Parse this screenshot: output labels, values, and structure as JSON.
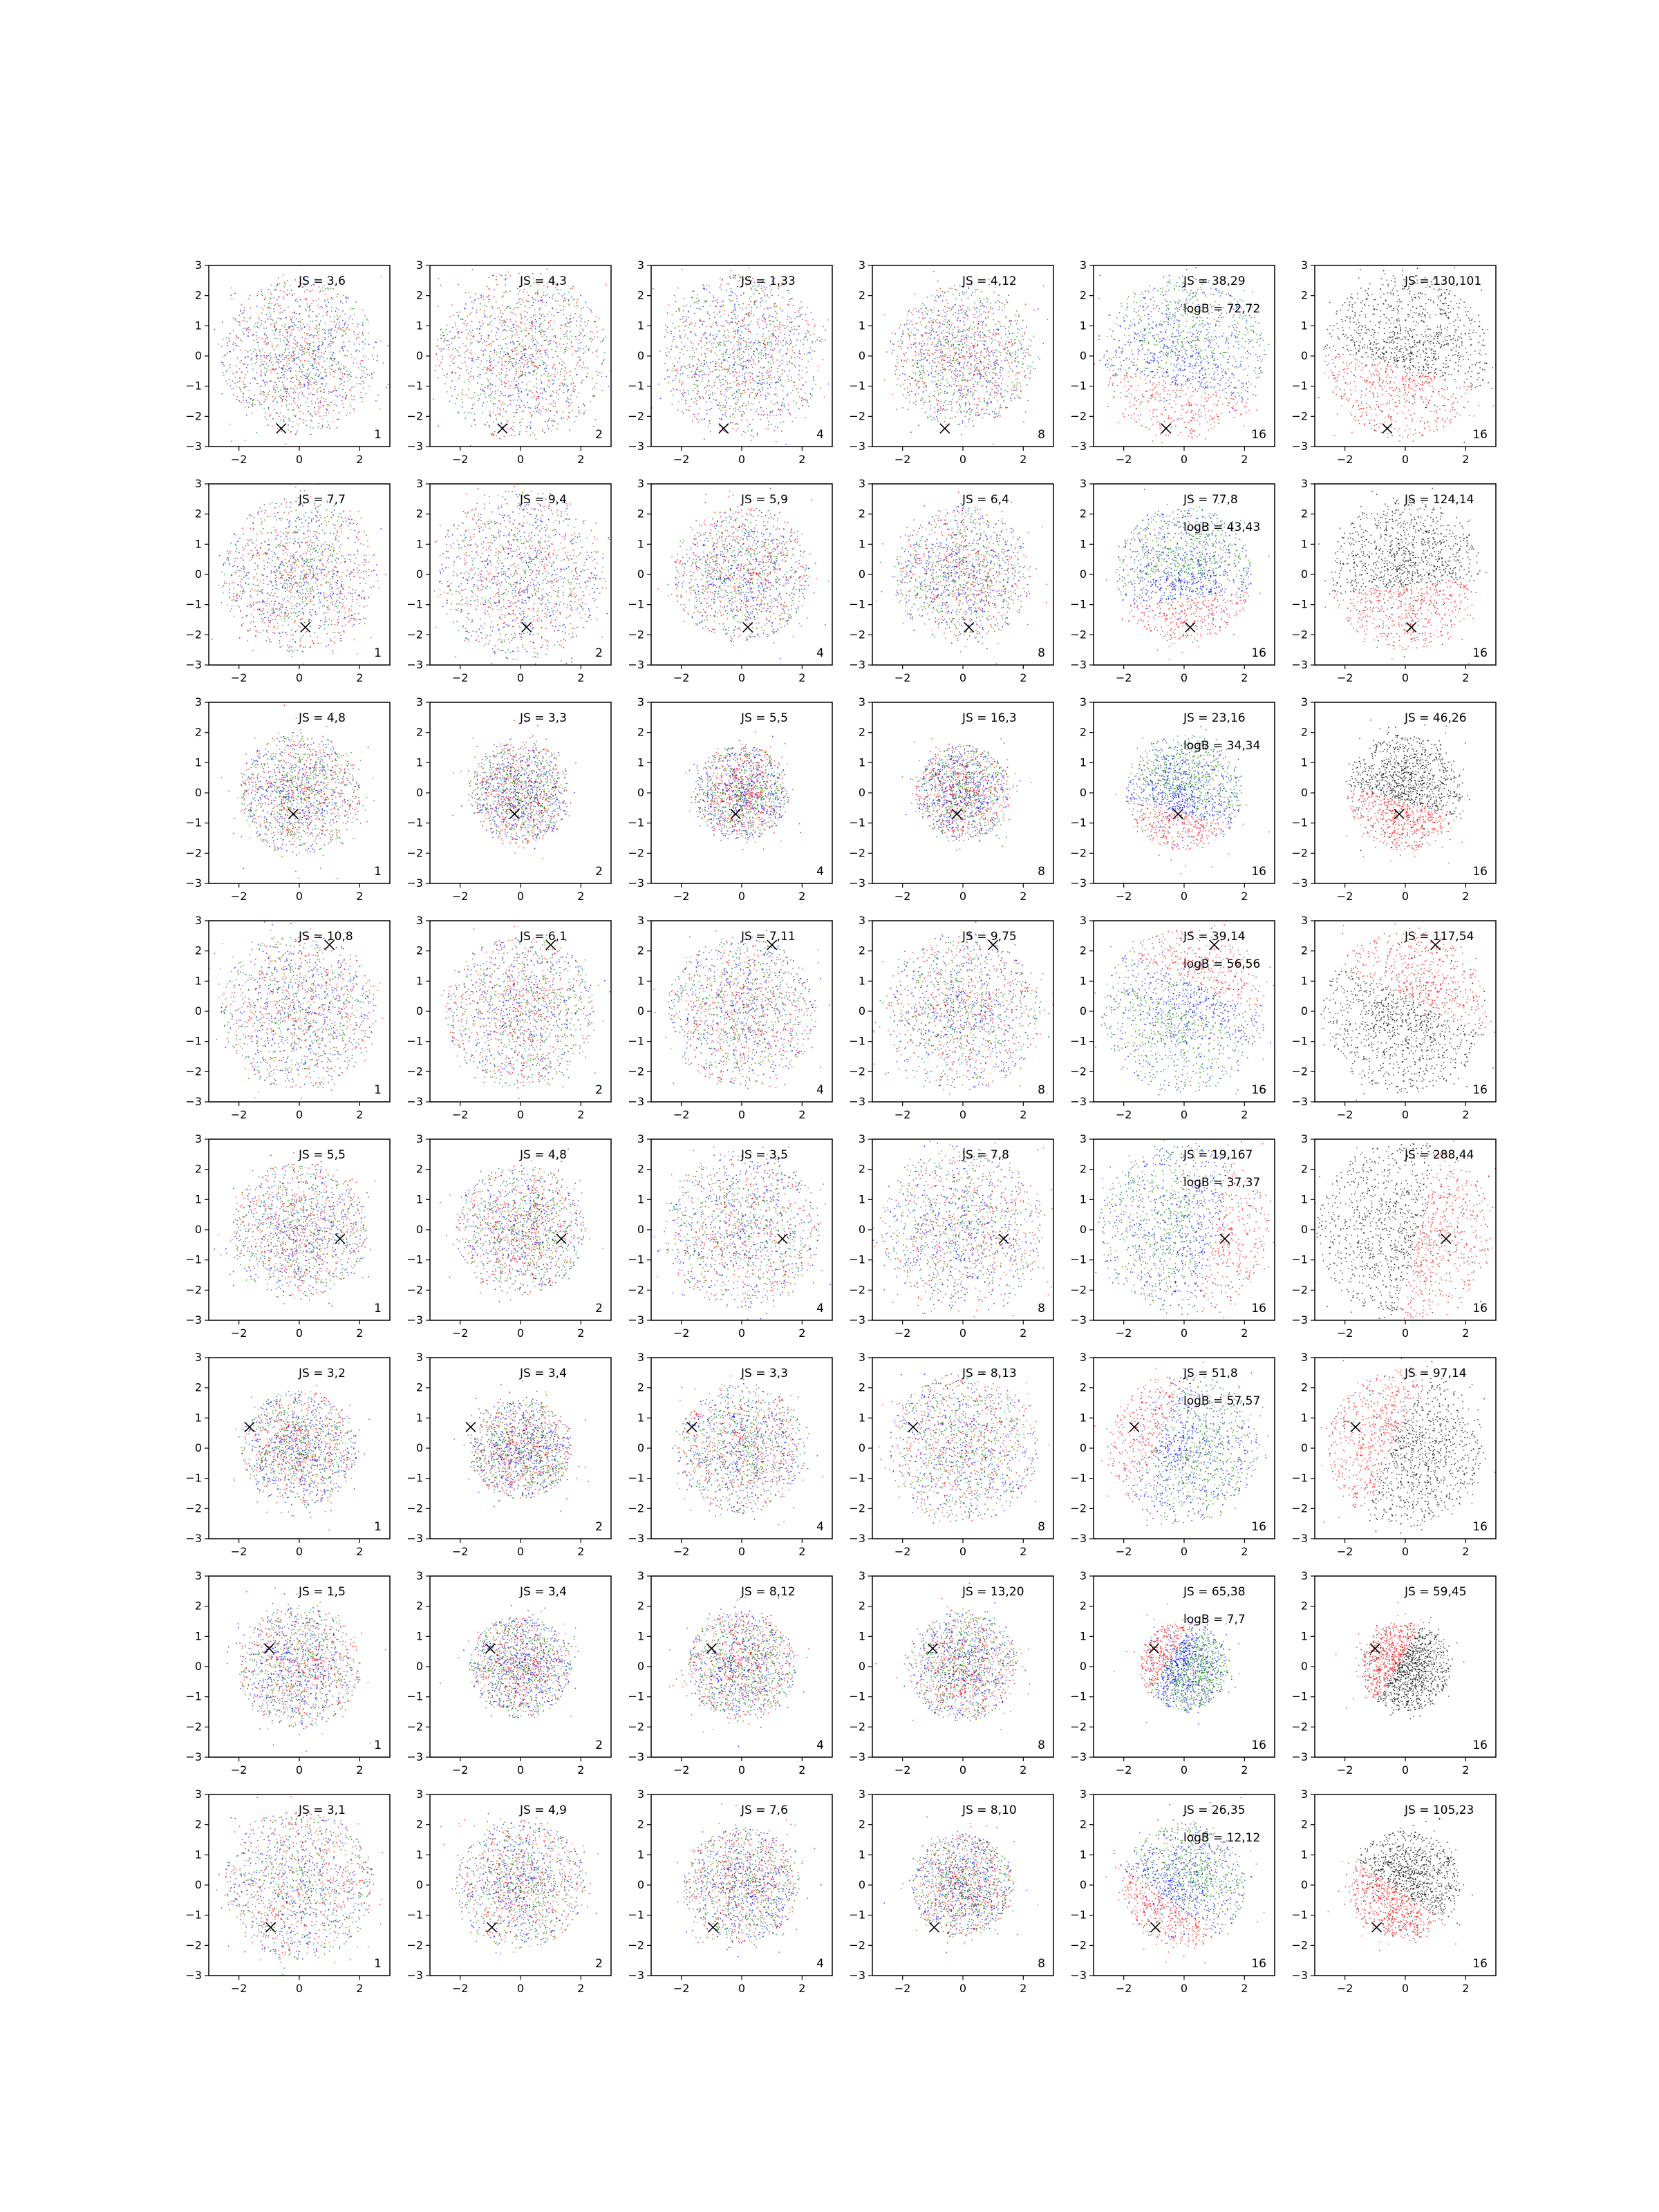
{
  "colors": {
    "red": "#ff0000",
    "green": "#008000",
    "blue": "#0000ff",
    "black": "#000000",
    "marker": "#000000"
  },
  "chart_data": {
    "type": "scatter",
    "rows": 8,
    "cols": 6,
    "xlim": [
      -3,
      3
    ],
    "ylim": [
      -3,
      3
    ],
    "xticks": [
      -2,
      0,
      2
    ],
    "xtick_labels": [
      "−2",
      "0",
      "2"
    ],
    "yticks": [
      -3,
      -2,
      -1,
      0,
      1,
      2,
      3
    ],
    "ytick_labels": [
      "−3",
      "−2",
      "−1",
      "0",
      "1",
      "2",
      "3"
    ],
    "grid": false,
    "panels": [
      {
        "row": 0,
        "col": 0,
        "label": "1",
        "js": "JS = 3,6",
        "logb": "",
        "marker": [
          -0.6,
          -2.4
        ],
        "mode": "mix",
        "spread": 1.15
      },
      {
        "row": 0,
        "col": 1,
        "label": "2",
        "js": "JS = 4,3",
        "logb": "",
        "marker": [
          -0.6,
          -2.4
        ],
        "mode": "mix",
        "spread": 1.25
      },
      {
        "row": 0,
        "col": 2,
        "label": "4",
        "js": "JS = 1,33",
        "logb": "",
        "marker": [
          -0.6,
          -2.4
        ],
        "mode": "mix",
        "spread": 1.2
      },
      {
        "row": 0,
        "col": 3,
        "label": "8",
        "js": "JS = 4,12",
        "logb": "",
        "marker": [
          -0.6,
          -2.4
        ],
        "mode": "mix",
        "spread": 1.05
      },
      {
        "row": 0,
        "col": 4,
        "label": "16",
        "js": "JS = 38,29",
        "logb": "logB = 72,72",
        "marker": [
          -0.6,
          -2.4
        ],
        "mode": "rgb-sep",
        "spread": 1.2
      },
      {
        "row": 0,
        "col": 5,
        "label": "16",
        "js": "JS = 130,101",
        "logb": "",
        "marker": [
          -0.6,
          -2.4
        ],
        "mode": "rk-sep",
        "spread": 1.2
      },
      {
        "row": 1,
        "col": 0,
        "label": "1",
        "js": "JS = 7,7",
        "logb": "",
        "marker": [
          0.2,
          -1.75
        ],
        "mode": "mix",
        "spread": 1.15
      },
      {
        "row": 1,
        "col": 1,
        "label": "2",
        "js": "JS = 9,4",
        "logb": "",
        "marker": [
          0.2,
          -1.75
        ],
        "mode": "mix",
        "spread": 1.25
      },
      {
        "row": 1,
        "col": 2,
        "label": "4",
        "js": "JS = 5,9",
        "logb": "",
        "marker": [
          0.2,
          -1.75
        ],
        "mode": "mix",
        "spread": 1.0
      },
      {
        "row": 1,
        "col": 3,
        "label": "8",
        "js": "JS = 6,4",
        "logb": "",
        "marker": [
          0.2,
          -1.75
        ],
        "mode": "mix",
        "spread": 1.0
      },
      {
        "row": 1,
        "col": 4,
        "label": "16",
        "js": "JS = 77,8",
        "logb": "logB = 43,43",
        "marker": [
          0.2,
          -1.75
        ],
        "mode": "rgb-sep",
        "spread": 1.0
      },
      {
        "row": 1,
        "col": 5,
        "label": "16",
        "js": "JS = 124,14",
        "logb": "",
        "marker": [
          0.2,
          -1.75
        ],
        "mode": "rk-sep",
        "spread": 1.1
      },
      {
        "row": 2,
        "col": 0,
        "label": "1",
        "js": "JS = 4,8",
        "logb": "",
        "marker": [
          -0.2,
          -0.7
        ],
        "mode": "mix",
        "spread": 0.9
      },
      {
        "row": 2,
        "col": 1,
        "label": "2",
        "js": "JS = 3,3",
        "logb": "",
        "marker": [
          -0.2,
          -0.7
        ],
        "mode": "mix",
        "spread": 0.75
      },
      {
        "row": 2,
        "col": 2,
        "label": "4",
        "js": "JS = 5,5",
        "logb": "",
        "marker": [
          -0.2,
          -0.7
        ],
        "mode": "mix",
        "spread": 0.7
      },
      {
        "row": 2,
        "col": 3,
        "label": "8",
        "js": "JS = 16,3",
        "logb": "",
        "marker": [
          -0.2,
          -0.7
        ],
        "mode": "mix",
        "spread": 0.7
      },
      {
        "row": 2,
        "col": 4,
        "label": "16",
        "js": "JS = 23,16",
        "logb": "logB = 34,34",
        "marker": [
          -0.2,
          -0.7
        ],
        "mode": "rgb-sep",
        "spread": 0.85
      },
      {
        "row": 2,
        "col": 5,
        "label": "16",
        "js": "JS = 46,26",
        "logb": "",
        "marker": [
          -0.2,
          -0.7
        ],
        "mode": "rk-sep",
        "spread": 0.85
      },
      {
        "row": 3,
        "col": 0,
        "label": "1",
        "js": "JS = 10,8",
        "logb": "",
        "marker": [
          1.0,
          2.2
        ],
        "mode": "mix",
        "spread": 1.15
      },
      {
        "row": 3,
        "col": 1,
        "label": "2",
        "js": "JS = 6,1",
        "logb": "",
        "marker": [
          1.0,
          2.2
        ],
        "mode": "mix",
        "spread": 1.1
      },
      {
        "row": 3,
        "col": 2,
        "label": "4",
        "js": "JS = 7,11",
        "logb": "",
        "marker": [
          1.0,
          2.2
        ],
        "mode": "mix",
        "spread": 1.1
      },
      {
        "row": 3,
        "col": 3,
        "label": "8",
        "js": "JS = 9,75",
        "logb": "",
        "marker": [
          1.0,
          2.2
        ],
        "mode": "mix",
        "spread": 1.15
      },
      {
        "row": 3,
        "col": 4,
        "label": "16",
        "js": "JS = 39,14",
        "logb": "logB = 56,56",
        "marker": [
          1.0,
          2.2
        ],
        "mode": "rgb-sep",
        "spread": 1.2
      },
      {
        "row": 3,
        "col": 5,
        "label": "16",
        "js": "JS = 117,54",
        "logb": "",
        "marker": [
          1.0,
          2.2
        ],
        "mode": "rk-sep",
        "spread": 1.2
      },
      {
        "row": 4,
        "col": 0,
        "label": "1",
        "js": "JS = 5,5",
        "logb": "",
        "marker": [
          1.35,
          -0.3
        ],
        "mode": "mix",
        "spread": 1.0
      },
      {
        "row": 4,
        "col": 1,
        "label": "2",
        "js": "JS = 4,8",
        "logb": "",
        "marker": [
          1.35,
          -0.3
        ],
        "mode": "mix",
        "spread": 0.95
      },
      {
        "row": 4,
        "col": 2,
        "label": "4",
        "js": "JS = 3,5",
        "logb": "",
        "marker": [
          1.35,
          -0.3
        ],
        "mode": "mix",
        "spread": 1.15
      },
      {
        "row": 4,
        "col": 3,
        "label": "8",
        "js": "JS = 7,8",
        "logb": "",
        "marker": [
          1.35,
          -0.3
        ],
        "mode": "mix",
        "spread": 1.2
      },
      {
        "row": 4,
        "col": 4,
        "label": "16",
        "js": "JS = 19,167",
        "logb": "logB = 37,37",
        "marker": [
          1.35,
          -0.3
        ],
        "mode": "rgb-sep",
        "spread": 1.25
      },
      {
        "row": 4,
        "col": 5,
        "label": "16",
        "js": "JS = 288,44",
        "logb": "",
        "marker": [
          1.35,
          -0.3
        ],
        "mode": "rk-sep",
        "spread": 1.3
      },
      {
        "row": 5,
        "col": 0,
        "label": "1",
        "js": "JS = 3,2",
        "logb": "",
        "marker": [
          -1.65,
          0.7
        ],
        "mode": "mix",
        "spread": 0.85
      },
      {
        "row": 5,
        "col": 1,
        "label": "2",
        "js": "JS = 3,4",
        "logb": "",
        "marker": [
          -1.65,
          0.7
        ],
        "mode": "mix",
        "spread": 0.75
      },
      {
        "row": 5,
        "col": 2,
        "label": "4",
        "js": "JS = 3,3",
        "logb": "",
        "marker": [
          -1.65,
          0.7
        ],
        "mode": "mix",
        "spread": 0.95
      },
      {
        "row": 5,
        "col": 3,
        "label": "8",
        "js": "JS = 8,13",
        "logb": "",
        "marker": [
          -1.65,
          0.7
        ],
        "mode": "mix",
        "spread": 1.1
      },
      {
        "row": 5,
        "col": 4,
        "label": "16",
        "js": "JS = 51,8",
        "logb": "logB = 57,57",
        "marker": [
          -1.65,
          0.7
        ],
        "mode": "rgb-sep",
        "spread": 1.1
      },
      {
        "row": 5,
        "col": 5,
        "label": "16",
        "js": "JS = 97,14",
        "logb": "",
        "marker": [
          -1.65,
          0.7
        ],
        "mode": "rk-sep",
        "spread": 1.15
      },
      {
        "row": 6,
        "col": 0,
        "label": "1",
        "js": "JS = 1,5",
        "logb": "",
        "marker": [
          -1.0,
          0.6
        ],
        "mode": "mix",
        "spread": 0.9
      },
      {
        "row": 6,
        "col": 1,
        "label": "2",
        "js": "JS = 3,4",
        "logb": "",
        "marker": [
          -1.0,
          0.6
        ],
        "mode": "mix",
        "spread": 0.75
      },
      {
        "row": 6,
        "col": 2,
        "label": "4",
        "js": "JS = 8,12",
        "logb": "",
        "marker": [
          -1.0,
          0.6
        ],
        "mode": "mix",
        "spread": 0.8
      },
      {
        "row": 6,
        "col": 3,
        "label": "8",
        "js": "JS = 13,20",
        "logb": "",
        "marker": [
          -1.0,
          0.6
        ],
        "mode": "mix",
        "spread": 0.8
      },
      {
        "row": 6,
        "col": 4,
        "label": "16",
        "js": "JS = 65,38",
        "logb": "logB = 7,7",
        "marker": [
          -1.0,
          0.6
        ],
        "mode": "rgb-sep",
        "spread": 0.65
      },
      {
        "row": 6,
        "col": 5,
        "label": "16",
        "js": "JS = 59,45",
        "logb": "",
        "marker": [
          -1.0,
          0.6
        ],
        "mode": "rk-sep",
        "spread": 0.65
      },
      {
        "row": 7,
        "col": 0,
        "label": "1",
        "js": "JS = 3,1",
        "logb": "",
        "marker": [
          -0.95,
          -1.4
        ],
        "mode": "mix",
        "spread": 1.1
      },
      {
        "row": 7,
        "col": 1,
        "label": "2",
        "js": "JS = 4,9",
        "logb": "",
        "marker": [
          -0.95,
          -1.4
        ],
        "mode": "mix",
        "spread": 0.95
      },
      {
        "row": 7,
        "col": 2,
        "label": "4",
        "js": "JS = 7,6",
        "logb": "",
        "marker": [
          -0.95,
          -1.4
        ],
        "mode": "mix",
        "spread": 0.85
      },
      {
        "row": 7,
        "col": 3,
        "label": "8",
        "js": "JS = 8,10",
        "logb": "",
        "marker": [
          -0.95,
          -1.4
        ],
        "mode": "mix",
        "spread": 0.75
      },
      {
        "row": 7,
        "col": 4,
        "label": "16",
        "js": "JS = 26,35",
        "logb": "logB = 12,12",
        "marker": [
          -0.95,
          -1.4
        ],
        "mode": "rgb-sep",
        "spread": 0.9
      },
      {
        "row": 7,
        "col": 5,
        "label": "16",
        "js": "JS = 105,23",
        "logb": "",
        "marker": [
          -0.95,
          -1.4
        ],
        "mode": "rk-sep",
        "spread": 0.8
      }
    ]
  }
}
